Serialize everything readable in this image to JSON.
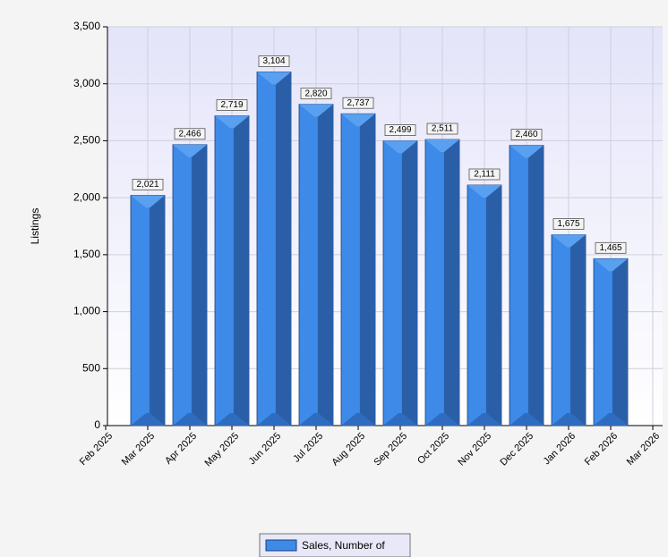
{
  "chart_data": {
    "type": "bar",
    "y_label": "Listings",
    "categories": [
      "Feb 2025",
      "Mar 2025",
      "Apr 2025",
      "May 2025",
      "Jun 2025",
      "Jul 2025",
      "Aug 2025",
      "Sep 2025",
      "Oct 2025",
      "Nov 2025",
      "Dec 2025",
      "Jan 2026",
      "Feb 2026",
      "Mar 2026"
    ],
    "series": [
      {
        "name": "Sales, Number of",
        "color": "#3d8ae8",
        "values": [
          null,
          2021,
          2466,
          2719,
          3104,
          2820,
          2737,
          2499,
          2511,
          2111,
          2460,
          1675,
          1465,
          null
        ],
        "value_labels": [
          null,
          "2,021",
          "2,466",
          "2,719",
          "3,104",
          "2,820",
          "2,737",
          "2,499",
          "2,511",
          "2,111",
          "2,460",
          "1,675",
          "1,465",
          null
        ]
      }
    ],
    "ylim": [
      0,
      3500
    ],
    "yticks": [
      0,
      500,
      {
        "value": 1000,
        "label": "1,000"
      },
      {
        "value": 1500,
        "label": "1,500"
      },
      {
        "value": 2000,
        "label": "2,000"
      },
      {
        "value": 2500,
        "label": "2,500"
      },
      {
        "value": 3000,
        "label": "3,000"
      },
      {
        "value": 3500,
        "label": "3,500"
      }
    ],
    "grid": true
  }
}
